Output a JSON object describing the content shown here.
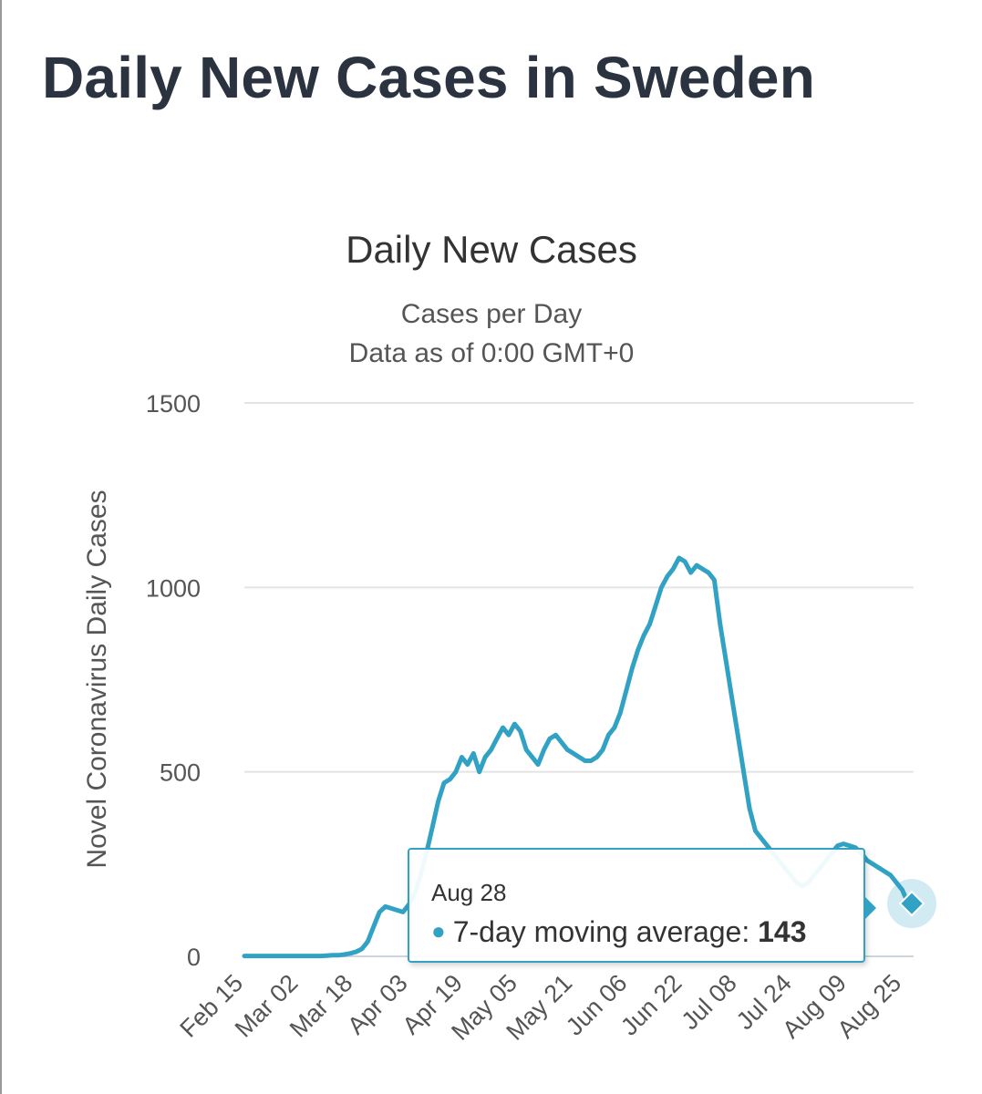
{
  "page": {
    "title": "Daily New Cases in Sweden"
  },
  "tooltip": {
    "date": "Aug 28",
    "series_label": "7-day moving average:",
    "value": "143"
  },
  "chart_data": {
    "type": "line",
    "title": "Daily New Cases",
    "subtitle": "Cases per Day",
    "subtitle2": "Data as of 0:00 GMT+0",
    "xlabel": "",
    "ylabel": "Novel Coronavirus Daily Cases",
    "ylim": [
      0,
      1500
    ],
    "yticks": [
      0,
      500,
      1000,
      1500
    ],
    "grid": true,
    "line_color": "#32a2c4",
    "xticks": [
      "Feb 15",
      "Mar 02",
      "Mar 18",
      "Apr 03",
      "Apr 19",
      "May 05",
      "May 21",
      "Jun 06",
      "Jun 22",
      "Jul 08",
      "Jul 24",
      "Aug 09",
      "Aug 25"
    ],
    "x_start": "Feb 15",
    "x_end": "Aug 28",
    "series": [
      {
        "values": [
          1,
          1,
          1,
          1,
          1,
          1,
          1,
          1,
          1,
          1,
          1,
          1,
          1,
          1,
          2,
          3,
          3,
          5,
          8,
          12,
          20,
          40,
          80,
          120,
          135,
          130,
          125,
          120,
          140,
          170,
          220,
          280,
          350,
          420,
          470,
          480,
          500,
          540,
          520,
          550,
          500,
          540,
          560,
          590,
          620,
          600,
          630,
          610,
          560,
          540,
          520,
          560,
          590,
          600,
          580,
          560,
          550,
          540,
          530,
          530,
          540,
          560,
          600,
          620,
          660,
          720,
          780,
          830,
          870,
          900,
          950,
          1000,
          1030,
          1050,
          1080,
          1070,
          1040,
          1060,
          1050,
          1040,
          1020,
          900,
          800,
          700,
          600,
          500,
          400,
          340,
          320,
          300,
          280,
          260,
          240,
          220,
          200,
          190,
          200,
          220,
          240,
          260,
          280,
          300,
          305,
          300,
          295,
          280,
          260,
          250,
          240,
          230,
          220,
          200,
          180,
          143
        ]
      }
    ]
  }
}
